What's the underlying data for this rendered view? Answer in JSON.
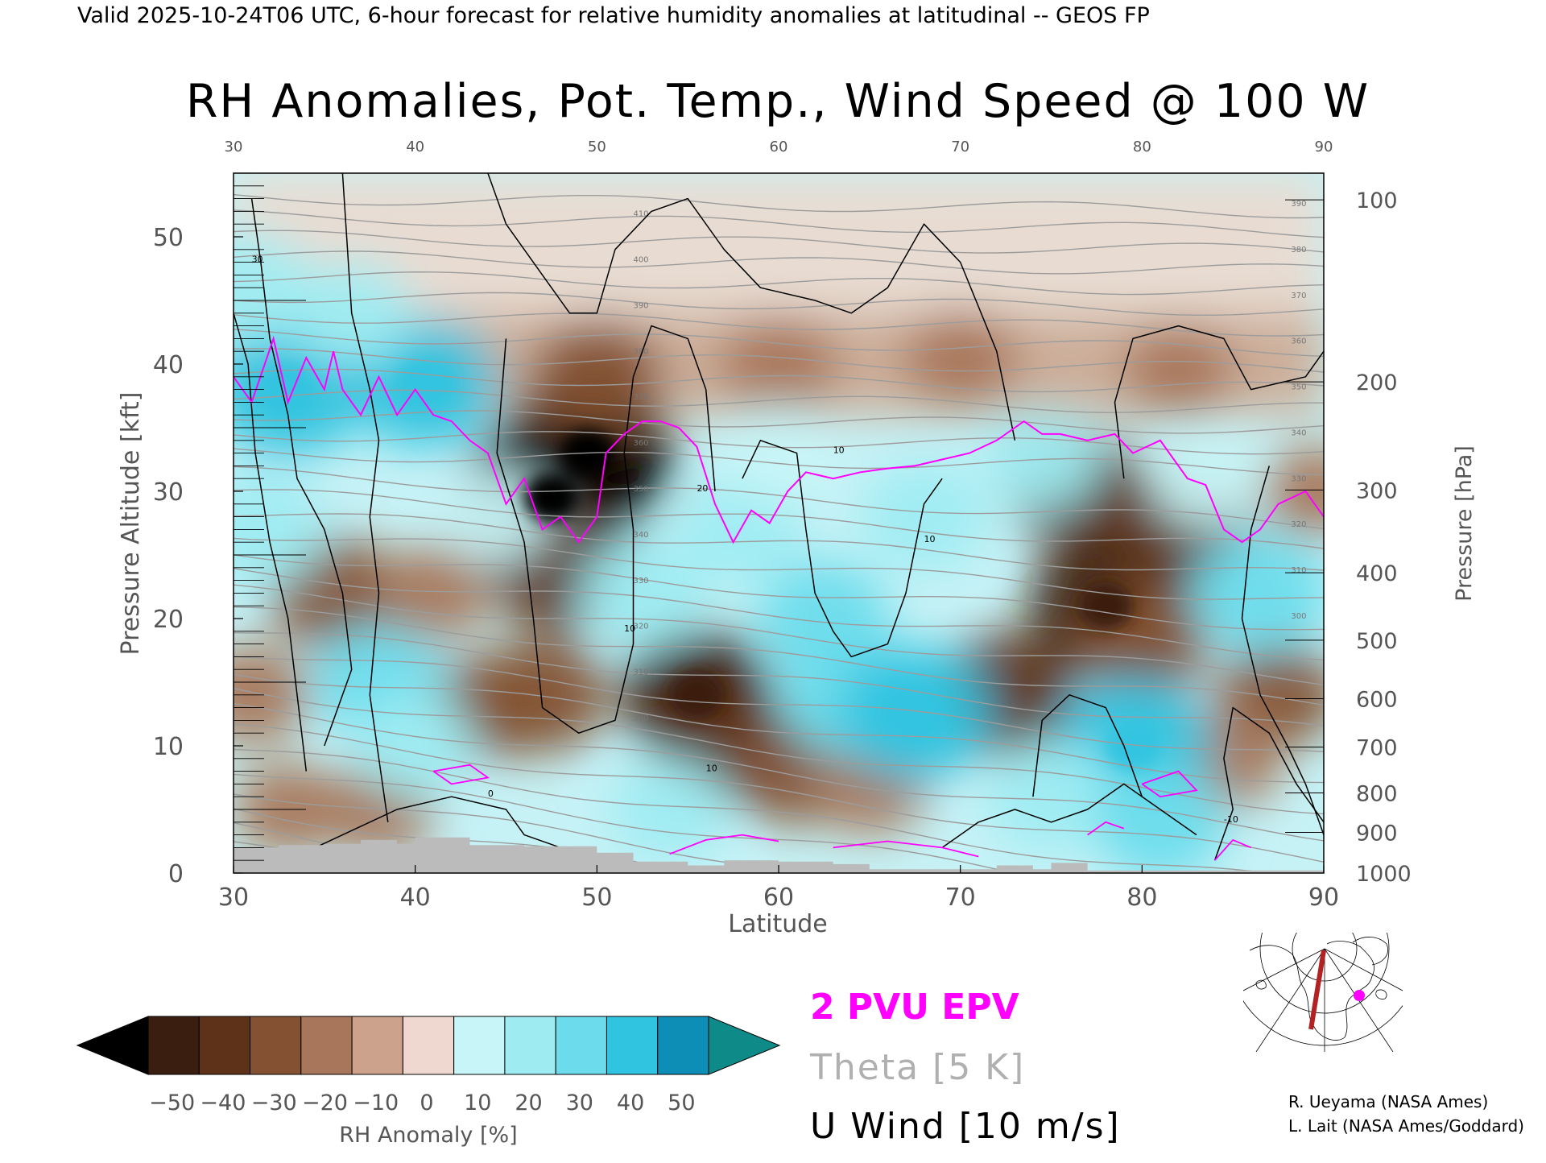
{
  "header": {
    "valid_line": "Valid 2025-10-24T06 UTC, 6-hour forecast for relative humidity anomalies at latitudinal -- GEOS FP",
    "title": "RH Anomalies, Pot. Temp., Wind Speed @ 100 W"
  },
  "chart_data": {
    "type": "heatmap",
    "title": "RH Anomalies, Pot. Temp., Wind Speed @ 100 W",
    "xlabel": "Latitude",
    "ylabel": "Pressure Altitude [kft]",
    "y2label": "Pressure [hPa]",
    "xlim": [
      30,
      90
    ],
    "ylim": [
      0,
      55
    ],
    "x_ticks": [
      "30",
      "40",
      "50",
      "60",
      "70",
      "80",
      "90"
    ],
    "y_ticks": [
      {
        "value": 0,
        "label": "0"
      },
      {
        "value": 10,
        "label": "10"
      },
      {
        "value": 20,
        "label": "20"
      },
      {
        "value": 30,
        "label": "30"
      },
      {
        "value": 40,
        "label": "40"
      },
      {
        "value": 50,
        "label": "50"
      }
    ],
    "pressure_ticks": [
      {
        "alt": 0.0,
        "label": "1000"
      },
      {
        "alt": 3.2,
        "label": "900"
      },
      {
        "alt": 6.3,
        "label": "800"
      },
      {
        "alt": 9.9,
        "label": "700"
      },
      {
        "alt": 13.7,
        "label": "600"
      },
      {
        "alt": 18.3,
        "label": "500"
      },
      {
        "alt": 23.6,
        "label": "400"
      },
      {
        "alt": 30.1,
        "label": "300"
      },
      {
        "alt": 38.6,
        "label": "200"
      },
      {
        "alt": 52.9,
        "label": "100"
      }
    ],
    "colorbar": {
      "label": "RH Anomaly [%]",
      "ticks": [
        "−50",
        "−40",
        "−30",
        "−20",
        "−10",
        "0",
        "10",
        "20",
        "30",
        "40",
        "50"
      ],
      "colors": [
        "#3a1e10",
        "#5e3218",
        "#845232",
        "#a8765a",
        "#cca28c",
        "#eed8d0",
        "#c8f6f8",
        "#9eecf2",
        "#6cdcec",
        "#30c4e0",
        "#0c8eb6"
      ],
      "under_color": "#000000",
      "over_color": "#0e8a88"
    },
    "rh_blobs": [
      {
        "lat": 47.5,
        "alt": 29.5,
        "value": -62
      },
      {
        "lat": 49.5,
        "alt": 33.0,
        "value": -58
      },
      {
        "lat": 48.0,
        "alt": 24.0,
        "value": -38
      },
      {
        "lat": 47.0,
        "alt": 14.0,
        "value": -30
      },
      {
        "lat": 50.0,
        "alt": 39.0,
        "value": -30
      },
      {
        "lat": 55.5,
        "alt": 14.0,
        "value": -42
      },
      {
        "lat": 57.0,
        "alt": 10.0,
        "value": -32
      },
      {
        "lat": 61.0,
        "alt": 8.0,
        "value": -24
      },
      {
        "lat": 65.0,
        "alt": 7.0,
        "value": -20
      },
      {
        "lat": 60.0,
        "alt": 40.0,
        "value": -20
      },
      {
        "lat": 70.0,
        "alt": 40.5,
        "value": -18
      },
      {
        "lat": 82.0,
        "alt": 39.5,
        "value": -15
      },
      {
        "lat": 76.5,
        "alt": 30.0,
        "value": -32
      },
      {
        "lat": 78.0,
        "alt": 21.0,
        "value": -44
      },
      {
        "lat": 82.0,
        "alt": 27.0,
        "value": -36
      },
      {
        "lat": 72.5,
        "alt": 14.0,
        "value": -35
      },
      {
        "lat": 80.0,
        "alt": 18.0,
        "value": -30
      },
      {
        "lat": 35.5,
        "alt": 22.0,
        "value": -28
      },
      {
        "lat": 41.0,
        "alt": 22.0,
        "value": -16
      },
      {
        "lat": 31.0,
        "alt": 14.0,
        "value": -18
      },
      {
        "lat": 33.0,
        "alt": 5.0,
        "value": -14
      },
      {
        "lat": 38.0,
        "alt": 5.0,
        "value": -16
      },
      {
        "lat": 44.0,
        "alt": 13.0,
        "value": -22
      },
      {
        "lat": 87.5,
        "alt": 14.0,
        "value": -22
      },
      {
        "lat": 89.5,
        "alt": 30.0,
        "value": -12
      },
      {
        "lat": 84.5,
        "alt": 9.0,
        "value": -20
      },
      {
        "lat": 33.0,
        "alt": 38.0,
        "value": 45
      },
      {
        "lat": 40.5,
        "alt": 38.5,
        "value": 40
      },
      {
        "lat": 31.0,
        "alt": 46.0,
        "value": 26
      },
      {
        "lat": 36.5,
        "alt": 44.0,
        "value": 22
      },
      {
        "lat": 31.5,
        "alt": 27.0,
        "value": 28
      },
      {
        "lat": 38.0,
        "alt": 15.0,
        "value": 30
      },
      {
        "lat": 40.0,
        "alt": 10.0,
        "value": 22
      },
      {
        "lat": 52.5,
        "alt": 22.0,
        "value": 28
      },
      {
        "lat": 58.0,
        "alt": 27.0,
        "value": 25
      },
      {
        "lat": 62.5,
        "alt": 20.0,
        "value": 30
      },
      {
        "lat": 64.0,
        "alt": 14.0,
        "value": 38
      },
      {
        "lat": 67.5,
        "alt": 12.5,
        "value": 44
      },
      {
        "lat": 68.0,
        "alt": 28.0,
        "value": 26
      },
      {
        "lat": 60.0,
        "alt": 33.0,
        "value": 16
      },
      {
        "lat": 54.0,
        "alt": 5.0,
        "value": 22
      },
      {
        "lat": 79.5,
        "alt": 10.0,
        "value": 46
      },
      {
        "lat": 75.0,
        "alt": 6.0,
        "value": 28
      },
      {
        "lat": 81.0,
        "alt": 4.0,
        "value": 30
      },
      {
        "lat": 86.5,
        "alt": 22.0,
        "value": 34
      },
      {
        "lat": 74.5,
        "alt": 32.5,
        "value": 20
      },
      {
        "lat": 83.5,
        "alt": 31.0,
        "value": 16
      },
      {
        "lat": 44.5,
        "alt": 28.0,
        "value": 14
      }
    ],
    "theta": {
      "interval_K": 5,
      "labels": [
        "300",
        "310",
        "320",
        "330",
        "340",
        "350",
        "360",
        "370",
        "380",
        "390",
        "400",
        "410",
        "420"
      ]
    },
    "epv_2pvu": [
      [
        30,
        39
      ],
      [
        31,
        37
      ],
      [
        32.2,
        42
      ],
      [
        33,
        37
      ],
      [
        34,
        40.5
      ],
      [
        35,
        38
      ],
      [
        35.5,
        41
      ],
      [
        36,
        38
      ],
      [
        37,
        36
      ],
      [
        38,
        39
      ],
      [
        39,
        36
      ],
      [
        40,
        38
      ],
      [
        41,
        36
      ],
      [
        42,
        35.5
      ],
      [
        43,
        34
      ],
      [
        44,
        33
      ],
      [
        45,
        29
      ],
      [
        46,
        31
      ],
      [
        47,
        27
      ],
      [
        48,
        28
      ],
      [
        49,
        26
      ],
      [
        50,
        28
      ],
      [
        50.5,
        33
      ],
      [
        51.5,
        34.5
      ],
      [
        52.5,
        35.5
      ],
      [
        53.5,
        35.5
      ],
      [
        54.5,
        35
      ],
      [
        55.5,
        33.5
      ],
      [
        56.5,
        29
      ],
      [
        57.5,
        26
      ],
      [
        58.5,
        28.5
      ],
      [
        59.5,
        27.5
      ],
      [
        60.5,
        30
      ],
      [
        61.5,
        31.5
      ],
      [
        63,
        31
      ],
      [
        64.5,
        31.5
      ],
      [
        66,
        31.8
      ],
      [
        67.5,
        32
      ],
      [
        69,
        32.5
      ],
      [
        70.5,
        33
      ],
      [
        72,
        34
      ],
      [
        73.5,
        35.5
      ],
      [
        74.5,
        34.5
      ],
      [
        75.5,
        34.5
      ],
      [
        77,
        34
      ],
      [
        78.5,
        34.5
      ],
      [
        79.5,
        33
      ],
      [
        81,
        34
      ],
      [
        82.5,
        31
      ],
      [
        83.5,
        30.5
      ],
      [
        84.5,
        27
      ],
      [
        85.5,
        26
      ],
      [
        86.5,
        27
      ],
      [
        87.5,
        29
      ],
      [
        89,
        30
      ],
      [
        90,
        28
      ]
    ],
    "u_wind": {
      "interval_ms": 10,
      "contour_labels": [
        "0",
        "10",
        "10",
        "10",
        "10",
        "20",
        "30",
        "-10"
      ]
    },
    "terrain": [
      [
        30,
        2
      ],
      [
        32.5,
        2
      ],
      [
        32.5,
        2.2
      ],
      [
        35,
        2.2
      ],
      [
        35,
        2.3
      ],
      [
        37,
        2.3
      ],
      [
        37,
        2.6
      ],
      [
        39,
        2.6
      ],
      [
        39,
        2.3
      ],
      [
        40,
        2.3
      ],
      [
        40,
        2.8
      ],
      [
        43,
        2.8
      ],
      [
        43,
        2.2
      ],
      [
        46,
        2.2
      ],
      [
        46,
        2.1
      ],
      [
        50,
        2.1
      ],
      [
        50,
        1.6
      ],
      [
        52,
        1.6
      ],
      [
        52,
        0.9
      ],
      [
        55,
        0.9
      ],
      [
        55,
        0.6
      ],
      [
        57,
        0.6
      ],
      [
        57,
        1.0
      ],
      [
        60,
        1.0
      ],
      [
        60,
        0.9
      ],
      [
        63,
        0.9
      ],
      [
        63,
        0.7
      ],
      [
        65,
        0.7
      ],
      [
        65,
        0.3
      ],
      [
        72,
        0.3
      ],
      [
        72,
        0.6
      ],
      [
        74,
        0.6
      ],
      [
        74,
        0.3
      ],
      [
        75,
        0.3
      ],
      [
        75,
        0.8
      ],
      [
        77,
        0.8
      ],
      [
        77,
        0.2
      ],
      [
        90,
        0.2
      ],
      [
        90,
        0
      ],
      [
        30,
        0
      ]
    ]
  },
  "legend": {
    "epv": "2 PVU EPV",
    "theta": "Theta [5 K]",
    "wind": "U Wind [10 m/s]",
    "epv_color": "#ff00ff",
    "theta_color": "#b0b0b0",
    "wind_color": "#000000"
  },
  "credits": {
    "line1": "R. Ueyama (NASA Ames)",
    "line2": "L. Lait (NASA Ames/Goddard)"
  },
  "inset_map": {
    "marker_color": "#ff00ff",
    "section_color": "#b22222"
  }
}
